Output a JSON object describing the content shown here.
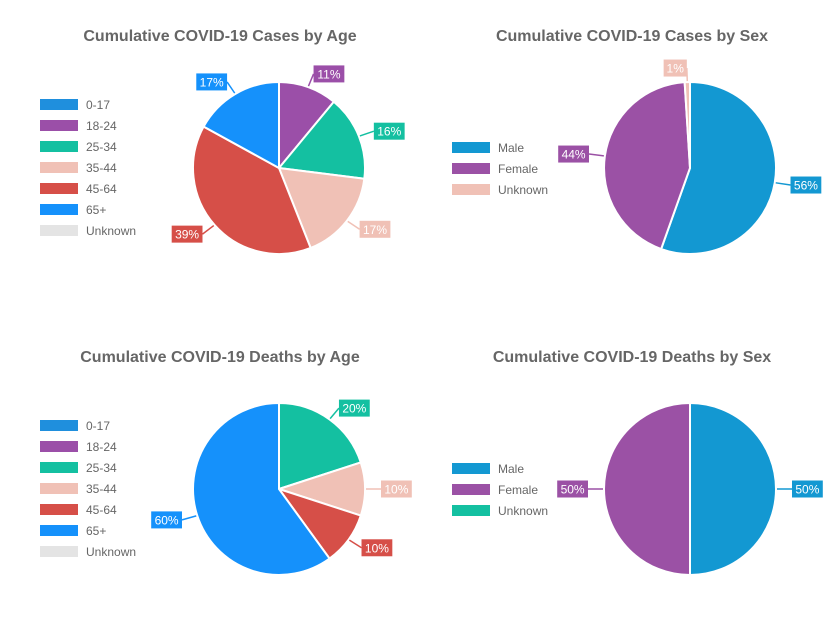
{
  "chart_data": [
    {
      "type": "pie",
      "title": "Cumulative COVID-19 Cases by Age",
      "categories": [
        "0-17",
        "18-24",
        "25-34",
        "35-44",
        "45-64",
        "65+",
        "Unknown"
      ],
      "values": [
        0,
        11,
        16,
        17,
        39,
        17,
        0
      ],
      "value_labels": [
        "",
        "11%",
        "16%",
        "17%",
        "39%",
        "17%",
        ""
      ],
      "colors": [
        "#1f8fdd",
        "#9b4fa8",
        "#14c0a1",
        "#f0c1b6",
        "#d64f48",
        "#1591fb",
        "#e4e4e4"
      ],
      "legend": "left"
    },
    {
      "type": "pie",
      "title": "Cumulative COVID-19 Cases by Sex",
      "categories": [
        "Male",
        "Female",
        "Unknown"
      ],
      "values": [
        56,
        44,
        1
      ],
      "value_labels": [
        "56%",
        "44%",
        "1%"
      ],
      "colors": [
        "#1398d2",
        "#9b51a5",
        "#f0c1b6"
      ],
      "legend": "left"
    },
    {
      "type": "pie",
      "title": "Cumulative COVID-19 Deaths by Age",
      "categories": [
        "0-17",
        "18-24",
        "25-34",
        "35-44",
        "45-64",
        "65+",
        "Unknown"
      ],
      "values": [
        0,
        0,
        20,
        10,
        10,
        60,
        0
      ],
      "value_labels": [
        "",
        "",
        "20%",
        "10%",
        "10%",
        "60%",
        ""
      ],
      "colors": [
        "#1f8fdd",
        "#9b4fa8",
        "#14c0a1",
        "#f0c1b6",
        "#d64f48",
        "#1591fb",
        "#e4e4e4"
      ],
      "legend": "left"
    },
    {
      "type": "pie",
      "title": "Cumulative COVID-19 Deaths by Sex",
      "categories": [
        "Male",
        "Female",
        "Unknown"
      ],
      "values": [
        50,
        50,
        0
      ],
      "value_labels": [
        "50%",
        "50%",
        ""
      ],
      "colors": [
        "#1398d2",
        "#9b51a5",
        "#14c0a1"
      ],
      "legend": "left"
    }
  ]
}
